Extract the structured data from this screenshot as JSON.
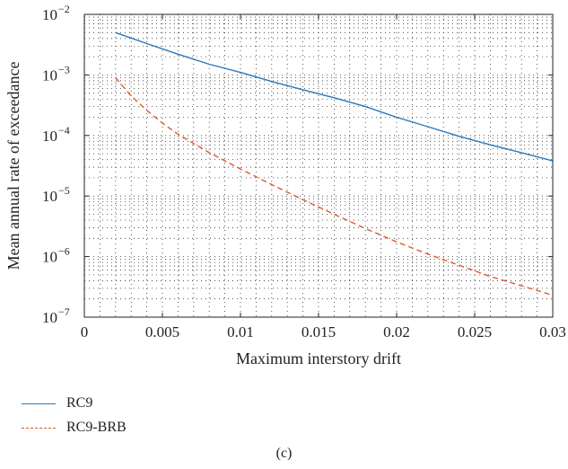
{
  "chart_data": {
    "type": "line",
    "xlabel": "Maximum interstory drift",
    "ylabel": "Mean annual rate of exceedance",
    "xlim": [
      0,
      0.03
    ],
    "ylim": [
      1e-07,
      0.01
    ],
    "yscale": "log",
    "grid": true,
    "x_ticks": [
      "0",
      "0.005",
      "0.01",
      "0.015",
      "0.02",
      "0.025",
      "0.03"
    ],
    "y_ticks": [
      {
        "base": "10",
        "exp": "−7"
      },
      {
        "base": "10",
        "exp": "−6"
      },
      {
        "base": "10",
        "exp": "−5"
      },
      {
        "base": "10",
        "exp": "−4"
      },
      {
        "base": "10",
        "exp": "−3"
      },
      {
        "base": "10",
        "exp": "−2"
      }
    ],
    "legend_position": "below",
    "series": [
      {
        "name": "RC9",
        "color": "#2878bd",
        "style": "solid",
        "x": [
          0.002,
          0.004,
          0.006,
          0.008,
          0.01,
          0.012,
          0.014,
          0.016,
          0.018,
          0.02,
          0.022,
          0.024,
          0.026,
          0.028,
          0.03
        ],
        "y": [
          0.005,
          0.0033,
          0.0022,
          0.0015,
          0.0011,
          0.00078,
          0.00057,
          0.00042,
          0.0003,
          0.0002,
          0.00014,
          9.7e-05,
          7e-05,
          5.2e-05,
          3.8e-05
        ]
      },
      {
        "name": "RC9-BRB",
        "color": "#e2572a",
        "style": "dashed",
        "x": [
          0.002,
          0.003,
          0.004,
          0.005,
          0.006,
          0.008,
          0.01,
          0.012,
          0.014,
          0.016,
          0.018,
          0.02,
          0.022,
          0.024,
          0.026,
          0.028,
          0.03
        ],
        "y": [
          0.0009,
          0.00045,
          0.00026,
          0.00016,
          0.000105,
          5.2e-05,
          2.8e-05,
          1.55e-05,
          8.7e-06,
          5e-06,
          2.9e-06,
          1.75e-06,
          1.1e-06,
          7.2e-07,
          4.7e-07,
          3.3e-07,
          2.3e-07
        ]
      }
    ]
  },
  "caption": "(c)"
}
